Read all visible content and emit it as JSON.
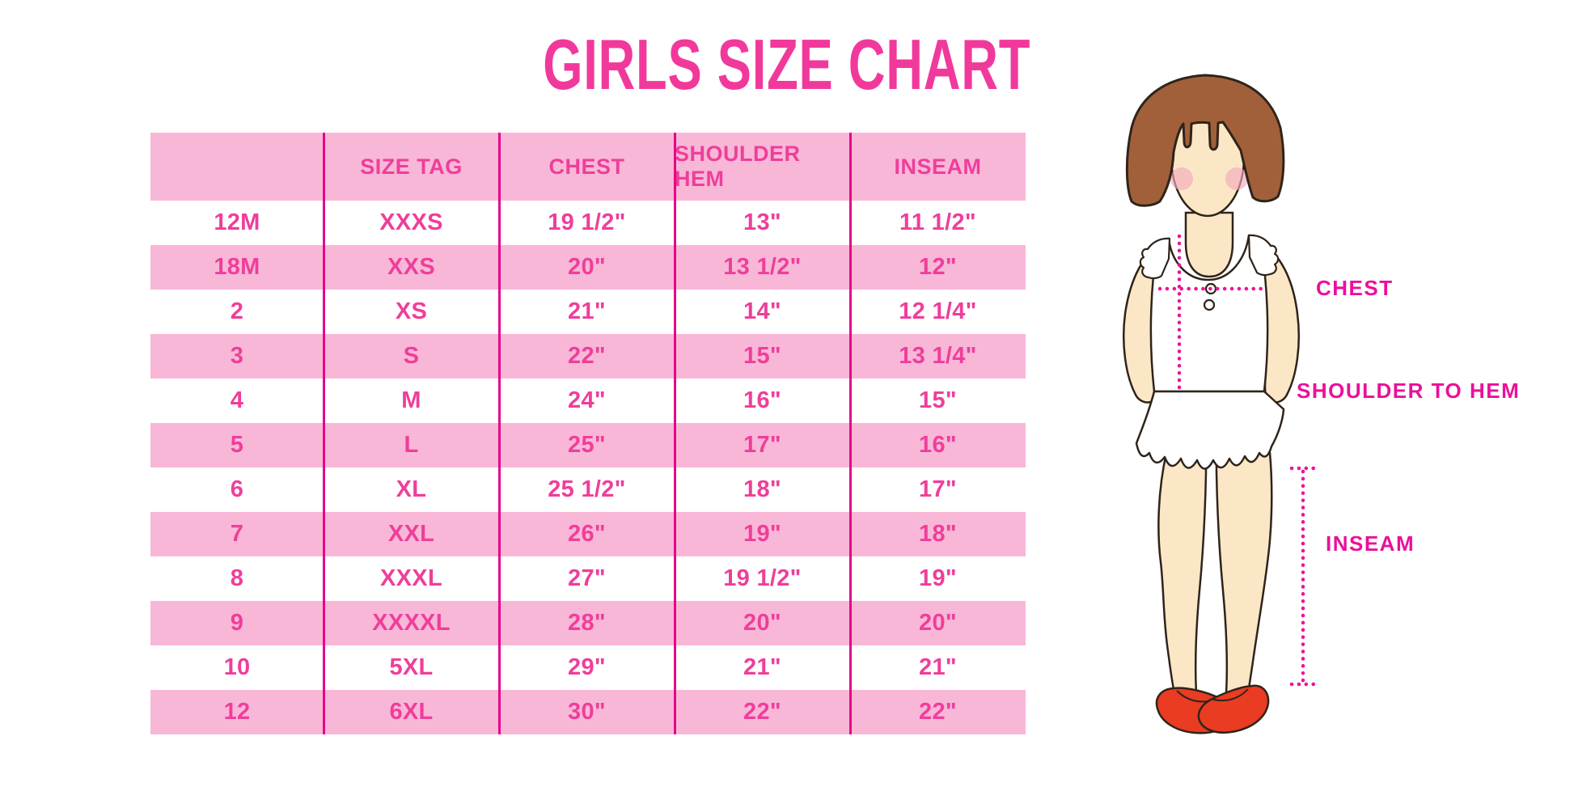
{
  "page": {
    "title": "GIRLS SIZE CHART",
    "background": "#ffffff"
  },
  "colors": {
    "title_pink": "#F1399C",
    "row_pink": "#F9B7D8",
    "cell_text_pink": "#EF3E9A",
    "column_divider_magenta": "#E5058A",
    "label_magenta": "#EA109B",
    "dotted_line_magenta": "#ED1299",
    "hair_brown": "#A2603A",
    "skin_tone": "#FBE7C6",
    "blush_pink": "#F2A9BD",
    "shoe_red": "#EA3B23",
    "garment_white": "#ffffff",
    "outline_dark": "#2F241B"
  },
  "chart_data": {
    "type": "table",
    "title": "GIRLS SIZE CHART",
    "units": "inches",
    "columns": [
      "",
      "SIZE TAG",
      "CHEST",
      "SHOULDER HEM",
      "INSEAM"
    ],
    "rows": [
      [
        "12M",
        "XXXS",
        "19 1/2\"",
        "13\"",
        "11 1/2\""
      ],
      [
        "18M",
        "XXS",
        "20\"",
        "13 1/2\"",
        "12\""
      ],
      [
        "2",
        "XS",
        "21\"",
        "14\"",
        "12 1/4\""
      ],
      [
        "3",
        "S",
        "22\"",
        "15\"",
        "13 1/4\""
      ],
      [
        "4",
        "M",
        "24\"",
        "16\"",
        "15\""
      ],
      [
        "5",
        "L",
        "25\"",
        "17\"",
        "16\""
      ],
      [
        "6",
        "XL",
        "25 1/2\"",
        "18\"",
        "17\""
      ],
      [
        "7",
        "XXL",
        "26\"",
        "19\"",
        "18\""
      ],
      [
        "8",
        "XXXL",
        "27\"",
        "19 1/2\"",
        "19\""
      ],
      [
        "9",
        "XXXXL",
        "28\"",
        "20\"",
        "20\""
      ],
      [
        "10",
        "5XL",
        "29\"",
        "21\"",
        "21\""
      ],
      [
        "12",
        "6XL",
        "30\"",
        "22\"",
        "22\""
      ]
    ],
    "striping": "header pink; data rows alternate white then pink",
    "legend_position": "none",
    "grid": "vertical magenta dividers between all 5 columns"
  },
  "diagram": {
    "description": "Cartoon girl with dotted measurement guide lines",
    "labels": {
      "chest": "CHEST",
      "shoulder_to_hem": "SHOULDER TO HEM",
      "inseam": "INSEAM"
    }
  }
}
